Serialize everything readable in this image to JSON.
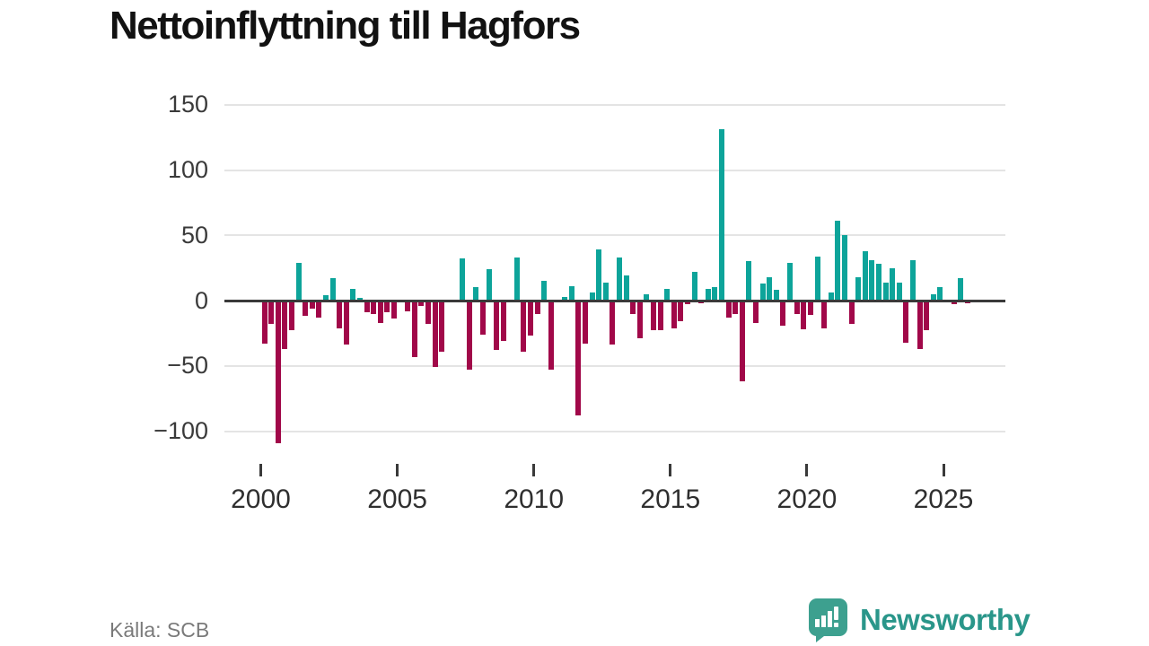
{
  "title": "Nettoinflyttning till Hagfors",
  "source": "Källa: SCB",
  "branding": {
    "logo_text": "Newsworthy",
    "logo_icon": "speech-bubble-bar-chart-icon"
  },
  "colors": {
    "positive_bar": "#0da49a",
    "negative_bar": "#a10849",
    "zero_axis": "#3a3a3a",
    "grid": "#e4e4e4",
    "logo_icon": "#3da08f",
    "logo_text": "#2a968a",
    "axis_label": "#3a3a3a",
    "source_text": "#7a7a7a"
  },
  "axes": {
    "y_tick_labels": [
      "150",
      "100",
      "50",
      "0",
      "−50",
      "−100"
    ],
    "y_tick_values": [
      150,
      100,
      50,
      0,
      -50,
      -100
    ],
    "x_tick_labels": [
      "2000",
      "2005",
      "2010",
      "2015",
      "2020",
      "2025"
    ],
    "x_tick_years": [
      2000,
      2005,
      2010,
      2015,
      2020,
      2025
    ]
  },
  "chart_data": {
    "type": "bar",
    "title": "Nettoinflyttning till Hagfors",
    "xlabel": "",
    "ylabel": "",
    "ylim": [
      -127,
      150
    ],
    "grid": "horizontal",
    "legend": "none",
    "period": "quarterly",
    "start_year": 2000,
    "values": [
      -33,
      -18,
      -109,
      -37,
      -23,
      29,
      -12,
      -6,
      -13,
      4,
      17,
      -21,
      -34,
      9,
      2,
      -9,
      -10,
      -17,
      -9,
      -14,
      0,
      -8,
      -43,
      -4,
      -18,
      -51,
      -39,
      0,
      0,
      32,
      -53,
      10,
      -26,
      24,
      -38,
      -31,
      0,
      33,
      -39,
      -27,
      -10,
      15,
      -53,
      0,
      3,
      11,
      -88,
      -33,
      6,
      39,
      14,
      -34,
      33,
      19,
      -10,
      -29,
      5,
      -23,
      -23,
      9,
      -21,
      -16,
      -3,
      22,
      -2,
      9,
      10,
      131,
      -13,
      -10,
      -62,
      30,
      -17,
      13,
      18,
      8,
      -19,
      29,
      -10,
      -22,
      -11,
      34,
      -21,
      6,
      61,
      50,
      -18,
      18,
      38,
      31,
      28,
      14,
      25,
      14,
      -32,
      31,
      -37,
      -23,
      5,
      10,
      0,
      -3,
      17,
      -2
    ]
  }
}
